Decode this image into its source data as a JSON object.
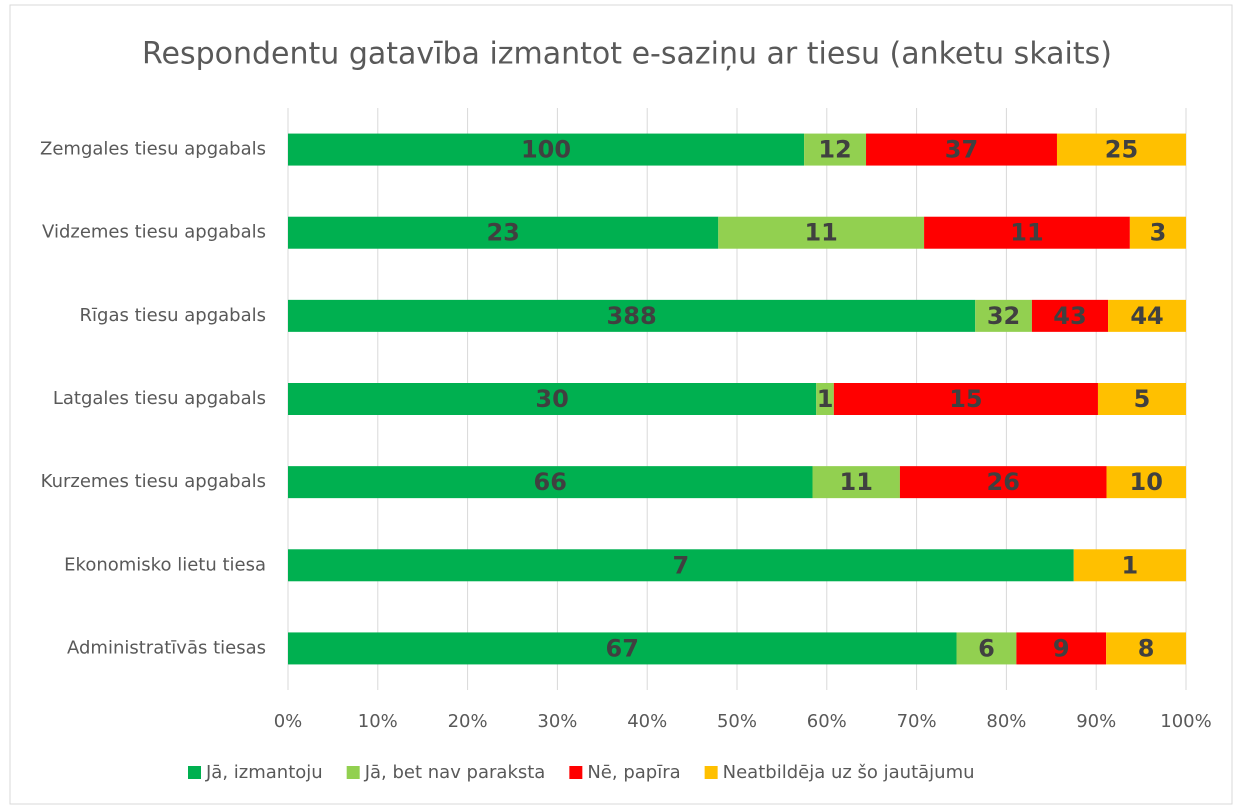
{
  "chart_data": {
    "type": "stacked_bar_100",
    "orientation": "horizontal",
    "title": "Respondentu gatavība izmantot e-saziņu ar tiesu (anketu skaits)",
    "categories": [
      "Zemgales tiesu apgabals",
      "Vidzemes tiesu apgabals",
      "Rīgas tiesu apgabals",
      "Latgales tiesu apgabals",
      "Kurzemes tiesu apgabals",
      "Ekonomisko lietu tiesa",
      "Administratīvās tiesas"
    ],
    "series": [
      {
        "name": "Jā, izmantoju",
        "color": "#00b050",
        "values": [
          100,
          23,
          388,
          30,
          66,
          7,
          67
        ]
      },
      {
        "name": "Jā, bet nav paraksta",
        "color": "#92d050",
        "values": [
          12,
          11,
          32,
          1,
          11,
          null,
          6
        ]
      },
      {
        "name": "Nē, papīra",
        "color": "#ff0000",
        "values": [
          37,
          11,
          43,
          15,
          26,
          null,
          9
        ]
      },
      {
        "name": "Neatbildēja uz šo jautājumu",
        "color": "#ffc000",
        "values": [
          25,
          3,
          44,
          5,
          10,
          1,
          8
        ]
      }
    ],
    "xlim": [
      0,
      100
    ],
    "xticks": [
      {
        "value": 0,
        "label": "0%"
      },
      {
        "value": 10,
        "label": "10%"
      },
      {
        "value": 20,
        "label": "20%"
      },
      {
        "value": 30,
        "label": "30%"
      },
      {
        "value": 40,
        "label": "40%"
      },
      {
        "value": 50,
        "label": "50%"
      },
      {
        "value": 60,
        "label": "60%"
      },
      {
        "value": 70,
        "label": "70%"
      },
      {
        "value": 80,
        "label": "80%"
      },
      {
        "value": 90,
        "label": "90%"
      },
      {
        "value": 100,
        "label": "100%"
      }
    ],
    "grid": true,
    "legend": "bottom"
  }
}
